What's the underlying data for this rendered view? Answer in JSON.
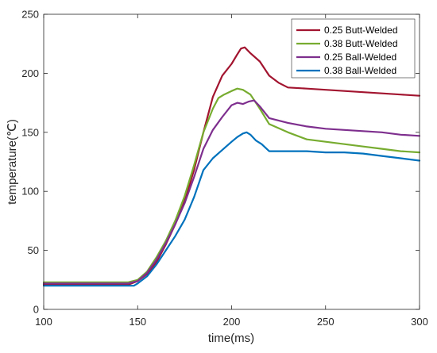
{
  "chart_data": {
    "type": "line",
    "xlabel": "time(ms)",
    "ylabel": "temperature(℃)",
    "xlim": [
      100,
      300
    ],
    "ylim": [
      0,
      250
    ],
    "xticks": [
      100,
      150,
      200,
      250,
      300
    ],
    "yticks": [
      0,
      50,
      100,
      150,
      200,
      250
    ],
    "grid": false,
    "legend_position": "top-right",
    "series": [
      {
        "name": "0.25 Butt-Welded",
        "color": "#a2142f",
        "x": [
          100,
          110,
          120,
          130,
          140,
          145,
          150,
          155,
          160,
          165,
          170,
          175,
          180,
          185,
          190,
          195,
          200,
          203,
          205,
          207,
          210,
          215,
          220,
          225,
          230,
          240,
          250,
          260,
          270,
          280,
          290,
          300
        ],
        "y": [
          21,
          21,
          21,
          21,
          21,
          21,
          24,
          30,
          40,
          55,
          72,
          92,
          118,
          150,
          180,
          198,
          208,
          216,
          221,
          222,
          217,
          210,
          198,
          192,
          188,
          187,
          186,
          185,
          184,
          183,
          182,
          181
        ]
      },
      {
        "name": "0.38 Butt-Welded",
        "color": "#77ac30",
        "x": [
          100,
          110,
          120,
          130,
          140,
          145,
          150,
          155,
          160,
          165,
          170,
          175,
          180,
          185,
          190,
          193,
          196,
          200,
          203,
          206,
          210,
          215,
          220,
          230,
          240,
          250,
          260,
          270,
          280,
          290,
          300
        ],
        "y": [
          23,
          23,
          23,
          23,
          23,
          23,
          25,
          32,
          44,
          58,
          75,
          96,
          122,
          150,
          170,
          179,
          182,
          185,
          187,
          186,
          182,
          170,
          157,
          150,
          144,
          142,
          140,
          138,
          136,
          134,
          133
        ]
      },
      {
        "name": "0.25 Ball-Welded",
        "color": "#7e2f8e",
        "x": [
          100,
          110,
          120,
          130,
          140,
          145,
          150,
          155,
          160,
          165,
          170,
          175,
          180,
          185,
          190,
          195,
          200,
          203,
          206,
          209,
          212,
          215,
          220,
          230,
          240,
          250,
          260,
          270,
          280,
          290,
          300
        ],
        "y": [
          22,
          22,
          22,
          22,
          22,
          22,
          24,
          31,
          42,
          56,
          72,
          90,
          112,
          136,
          152,
          163,
          173,
          175,
          174,
          176,
          177,
          172,
          162,
          158,
          155,
          153,
          152,
          151,
          150,
          148,
          147
        ]
      },
      {
        "name": "0.38 Ball-Welded",
        "color": "#0072bd",
        "x": [
          100,
          110,
          120,
          130,
          140,
          145,
          148,
          150,
          155,
          160,
          165,
          170,
          175,
          180,
          185,
          190,
          195,
          200,
          203,
          206,
          208,
          210,
          213,
          216,
          220,
          230,
          240,
          250,
          260,
          270,
          280,
          290,
          300
        ],
        "y": [
          20,
          20,
          20,
          20,
          20,
          20,
          20,
          22,
          28,
          38,
          50,
          62,
          76,
          95,
          118,
          128,
          135,
          142,
          146,
          149,
          150,
          148,
          143,
          140,
          134,
          134,
          134,
          133,
          133,
          132,
          130,
          128,
          126
        ]
      }
    ]
  }
}
